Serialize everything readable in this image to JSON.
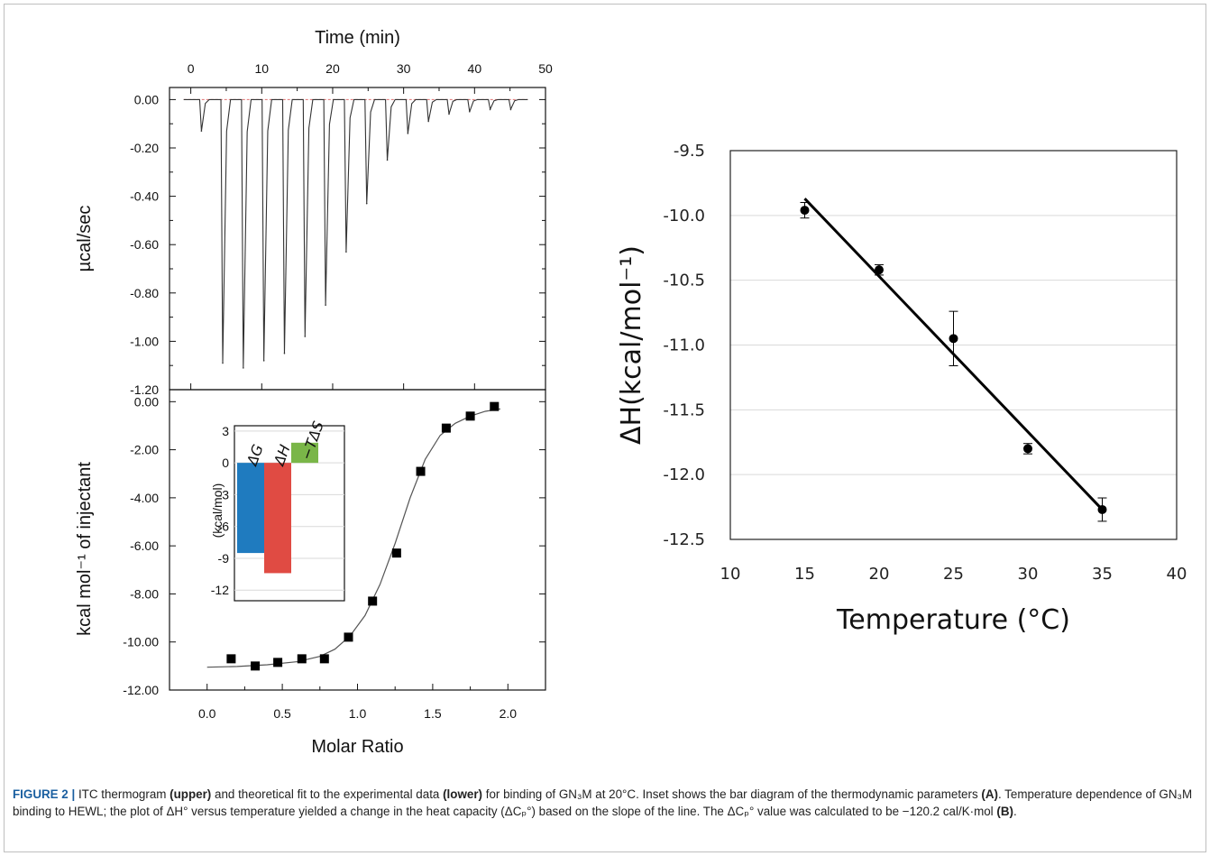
{
  "figure": {
    "caption_label": "FIGURE 2 |",
    "caption_parts": [
      {
        "t": " ITC thermogram ",
        "b": false
      },
      {
        "t": "(upper)",
        "b": true
      },
      {
        "t": " and theoretical fit to the experimental data ",
        "b": false
      },
      {
        "t": "(lower)",
        "b": true
      },
      {
        "t": " for binding of GN₃M at 20°C. Inset shows the bar diagram of the thermodynamic parameters ",
        "b": false
      },
      {
        "t": "(A)",
        "b": true
      },
      {
        "t": ". Temperature dependence of GN₃M binding to HEWL; the plot of ΔH° versus temperature yielded a change in the heat capacity (ΔCₚ°) based on the slope of the line. The ΔCₚ° value was calculated to be −120.2 cal/K·mol ",
        "b": false
      },
      {
        "t": "(B)",
        "b": true
      },
      {
        "t": ".",
        "b": false
      }
    ]
  },
  "chart_data": [
    {
      "id": "A-upper",
      "type": "line",
      "xlabel": "Time (min)",
      "ylabel": "µcal/sec",
      "xlim": [
        -3,
        50
      ],
      "ylim": [
        -1.2,
        0.05
      ],
      "x_ticks": [
        0,
        10,
        20,
        30,
        40,
        50
      ],
      "y_ticks": [
        0.0,
        -0.2,
        -0.4,
        -0.6,
        -0.8,
        -1.0,
        -1.2
      ],
      "y_tick_labels": [
        "0.00",
        "-0.20",
        "-0.40",
        "-0.60",
        "-0.80",
        "-1.00",
        "-1.20"
      ],
      "baseline": 0.0,
      "injection_peaks": [
        {
          "time": 1.5,
          "min": -0.13
        },
        {
          "time": 4.5,
          "min": -1.09
        },
        {
          "time": 7.4,
          "min": -1.11
        },
        {
          "time": 10.3,
          "min": -1.08
        },
        {
          "time": 13.2,
          "min": -1.05
        },
        {
          "time": 16.1,
          "min": -0.98
        },
        {
          "time": 19.0,
          "min": -0.85
        },
        {
          "time": 21.9,
          "min": -0.63
        },
        {
          "time": 24.8,
          "min": -0.43
        },
        {
          "time": 27.7,
          "min": -0.25
        },
        {
          "time": 30.6,
          "min": -0.14
        },
        {
          "time": 33.5,
          "min": -0.09
        },
        {
          "time": 36.4,
          "min": -0.06
        },
        {
          "time": 39.3,
          "min": -0.05
        },
        {
          "time": 42.2,
          "min": -0.04
        },
        {
          "time": 45.1,
          "min": -0.04
        }
      ]
    },
    {
      "id": "A-lower",
      "type": "scatter",
      "xlabel": "Molar Ratio",
      "ylabel": "kcal mol⁻¹ of injectant",
      "xlim": [
        -0.25,
        2.25
      ],
      "ylim": [
        -12.0,
        0.5
      ],
      "x_ticks": [
        0.0,
        0.5,
        1.0,
        1.5,
        2.0
      ],
      "x_tick_labels": [
        "0.0",
        "0.5",
        "1.0",
        "1.5",
        "2.0"
      ],
      "y_ticks": [
        0,
        -2,
        -4,
        -6,
        -8,
        -10,
        -12
      ],
      "y_tick_labels": [
        "0.00",
        "-2.00",
        "-4.00",
        "-6.00",
        "-8.00",
        "-10.00",
        "-12.00"
      ],
      "points": [
        {
          "x": 0.16,
          "y": -10.7
        },
        {
          "x": 0.32,
          "y": -11.0
        },
        {
          "x": 0.47,
          "y": -10.85
        },
        {
          "x": 0.63,
          "y": -10.7
        },
        {
          "x": 0.78,
          "y": -10.7
        },
        {
          "x": 0.94,
          "y": -9.8
        },
        {
          "x": 1.1,
          "y": -8.3
        },
        {
          "x": 1.26,
          "y": -6.3
        },
        {
          "x": 1.42,
          "y": -2.9
        },
        {
          "x": 1.59,
          "y": -1.1
        },
        {
          "x": 1.75,
          "y": -0.6
        },
        {
          "x": 1.91,
          "y": -0.2
        }
      ],
      "fit": {
        "x": [
          0.0,
          0.2,
          0.4,
          0.6,
          0.75,
          0.85,
          0.95,
          1.05,
          1.15,
          1.25,
          1.35,
          1.45,
          1.55,
          1.65,
          1.75,
          1.85,
          1.95
        ],
        "y": [
          -11.05,
          -11.02,
          -10.95,
          -10.82,
          -10.6,
          -10.3,
          -9.75,
          -8.9,
          -7.6,
          -5.9,
          -4.0,
          -2.4,
          -1.4,
          -0.9,
          -0.6,
          -0.4,
          -0.3
        ]
      }
    },
    {
      "id": "A-inset",
      "type": "bar",
      "ylabel": "(kcal/mol)",
      "ylim": [
        -13,
        3.5
      ],
      "y_ticks": [
        3,
        0,
        -3,
        -6,
        -9,
        -12
      ],
      "categories": [
        "ΔG",
        "ΔH",
        "−TΔS"
      ],
      "values": [
        -8.5,
        -10.4,
        1.9
      ],
      "colors": [
        "#1f7bbf",
        "#e04b43",
        "#7ab648"
      ]
    },
    {
      "id": "B",
      "type": "scatter",
      "xlabel": "Temperature (°C)",
      "ylabel": "ΔH(kcal/mol⁻¹)",
      "xlim": [
        10,
        40
      ],
      "ylim": [
        -12.5,
        -9.5
      ],
      "x_ticks": [
        10,
        15,
        20,
        25,
        30,
        35,
        40
      ],
      "y_ticks": [
        -9.5,
        -10.0,
        -10.5,
        -11.0,
        -11.5,
        -12.0,
        -12.5
      ],
      "y_tick_labels": [
        "-9.5",
        "-10.0",
        "-10.5",
        "-11.0",
        "-11.5",
        "-12.0",
        "-12.5"
      ],
      "grid": true,
      "points": [
        {
          "x": 15,
          "y": -9.96,
          "err": 0.06
        },
        {
          "x": 20,
          "y": -10.42,
          "err": 0.04
        },
        {
          "x": 25,
          "y": -10.95,
          "err": 0.21
        },
        {
          "x": 30,
          "y": -11.8,
          "err": 0.04
        },
        {
          "x": 35,
          "y": -12.27,
          "err": 0.09
        }
      ],
      "trendline": {
        "x": [
          15,
          35
        ],
        "y": [
          -9.87,
          -12.27
        ]
      }
    }
  ]
}
